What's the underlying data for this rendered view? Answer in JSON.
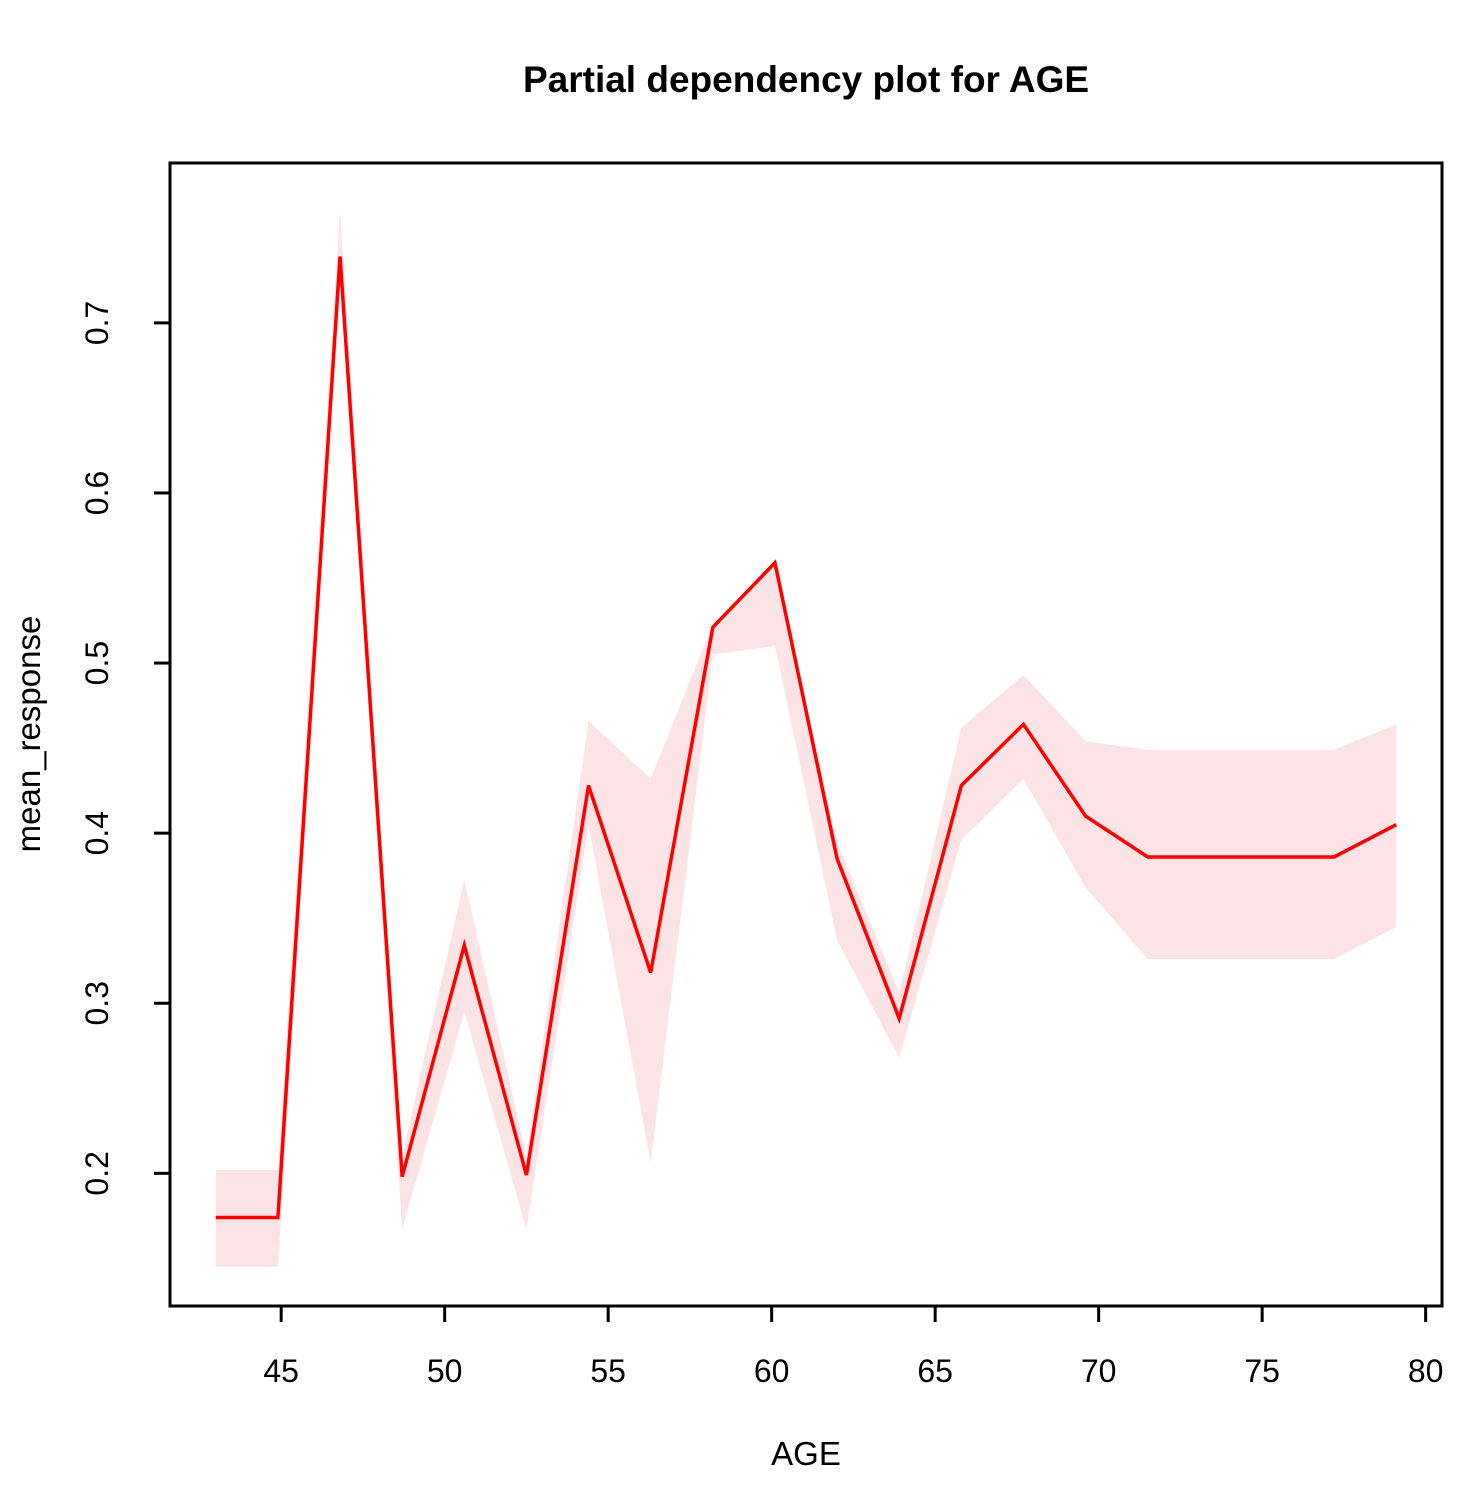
{
  "chart_data": {
    "type": "line",
    "title": "Partial dependency plot for AGE",
    "xlabel": "AGE",
    "ylabel": "mean_response",
    "x": [
      43.0,
      44.9,
      46.8,
      48.7,
      50.6,
      52.5,
      54.4,
      56.3,
      58.2,
      60.1,
      62.0,
      63.9,
      65.8,
      67.7,
      69.6,
      71.5,
      73.4,
      75.3,
      77.2,
      79.1
    ],
    "series": [
      {
        "name": "mean_response",
        "values": [
          0.174,
          0.174,
          0.739,
          0.198,
          0.334,
          0.199,
          0.428,
          0.318,
          0.521,
          0.559,
          0.385,
          0.291,
          0.428,
          0.464,
          0.41,
          0.386,
          0.386,
          0.386,
          0.386,
          0.405
        ]
      },
      {
        "name": "lower_band",
        "values": [
          0.145,
          0.145,
          0.733,
          0.167,
          0.295,
          0.167,
          0.405,
          0.206,
          0.505,
          0.51,
          0.337,
          0.268,
          0.396,
          0.432,
          0.368,
          0.326,
          0.326,
          0.326,
          0.326,
          0.345
        ]
      },
      {
        "name": "upper_band",
        "values": [
          0.202,
          0.202,
          0.766,
          0.21,
          0.373,
          0.21,
          0.466,
          0.432,
          0.523,
          0.559,
          0.395,
          0.306,
          0.462,
          0.493,
          0.454,
          0.449,
          0.449,
          0.449,
          0.449,
          0.464
        ]
      }
    ],
    "x_ticks": [
      45,
      50,
      55,
      60,
      65,
      70,
      75,
      80
    ],
    "y_ticks": [
      0.2,
      0.3,
      0.4,
      0.5,
      0.6,
      0.7
    ],
    "xlim": [
      41.6,
      80.5
    ],
    "ylim": [
      0.122,
      0.794
    ],
    "grid": false,
    "legend_position": "none",
    "line_color": "#FF0000",
    "band_color": "#FCE3E6",
    "axis_color": "#000000"
  }
}
